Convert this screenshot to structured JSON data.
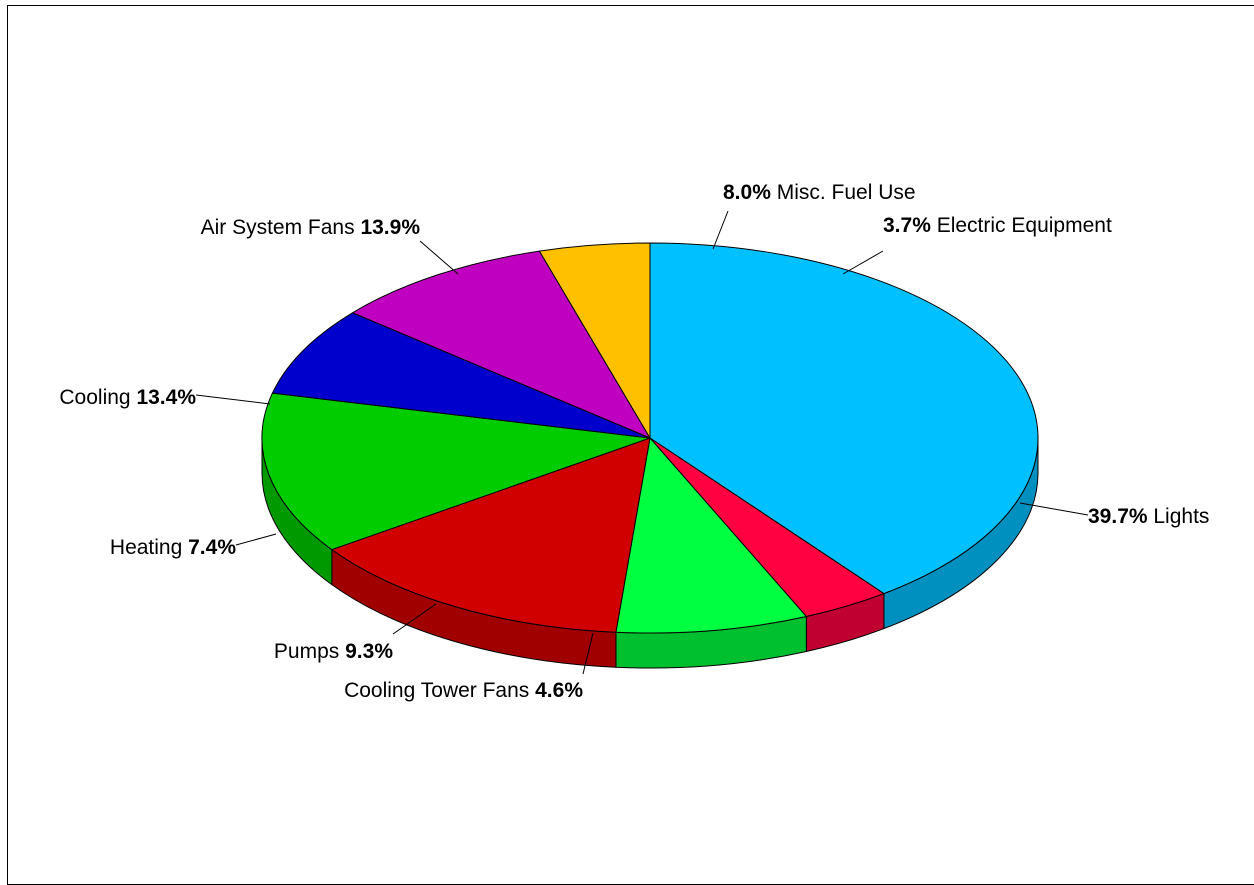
{
  "chart_data": {
    "type": "pie",
    "title": "",
    "series": [
      {
        "values": [
          39.7,
          3.7,
          8.0,
          13.9,
          13.4,
          7.4,
          9.3,
          4.6
        ],
        "categories": [
          "Lights",
          "Electric Equipment",
          "Misc. Fuel Use",
          "Air System Fans",
          "Cooling",
          "Heating",
          "Pumps",
          "Cooling Tower Fans"
        ]
      }
    ],
    "labels": [
      {
        "name": "Lights",
        "pct": "39.7%",
        "order": "pct-first"
      },
      {
        "name": "Electric Equipment",
        "pct": "3.7%",
        "order": "pct-first"
      },
      {
        "name": "Misc. Fuel Use",
        "pct": "8.0%",
        "order": "pct-first"
      },
      {
        "name": "Air System Fans",
        "pct": "13.9%",
        "order": "name-first"
      },
      {
        "name": "Cooling",
        "pct": "13.4%",
        "order": "name-first"
      },
      {
        "name": "Heating",
        "pct": "7.4%",
        "order": "name-first"
      },
      {
        "name": "Pumps",
        "pct": "9.3%",
        "order": "name-first"
      },
      {
        "name": "Cooling Tower Fans",
        "pct": "4.6%",
        "order": "name-first"
      }
    ],
    "colors": [
      "#00c0ff",
      "#ff0040",
      "#00ff40",
      "#d00000",
      "#00cc00",
      "#0000cc",
      "#c000c0",
      "#ffc000"
    ],
    "side_colors": [
      "#0090c0",
      "#c00030",
      "#00c030",
      "#a00000",
      "#009900",
      "#000099",
      "#900090",
      "#c09000"
    ],
    "style": "3d-tilted",
    "legend": "none"
  }
}
